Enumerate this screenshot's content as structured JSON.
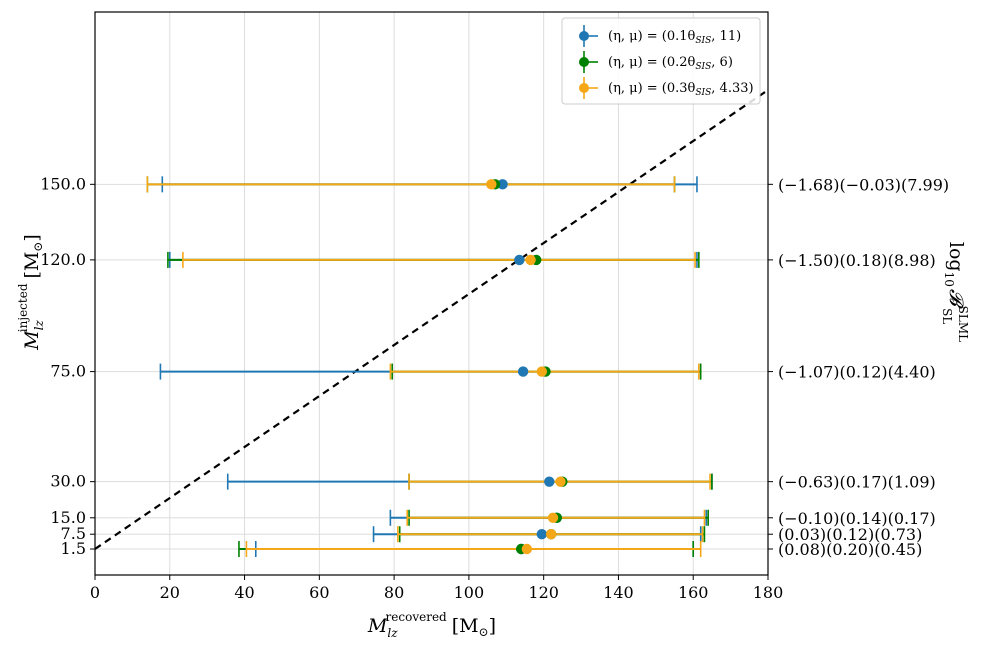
{
  "chart_data": {
    "type": "scatter",
    "title": "",
    "xlabel": {
      "main": "M",
      "sub": "lz",
      "sup": "recovered",
      "unit": "[M",
      "unit_sub": "⊙",
      "unit_end": "]"
    },
    "ylabel": {
      "main": "M",
      "sub": "lz",
      "sup": "injected",
      "unit": "[M",
      "unit_sub": "⊙",
      "unit_end": "]"
    },
    "right_ylabel": {
      "main": "log",
      "sub10": "10",
      "B": "𝓑",
      "sup": "SLML",
      "sub": "SL"
    },
    "xlim": [
      0,
      180
    ],
    "x_ticks": [
      "0",
      "20",
      "40",
      "60",
      "80",
      "100",
      "120",
      "140",
      "160",
      "180"
    ],
    "y_ticks": [
      "1.5",
      "7.5",
      "15.0",
      "30.0",
      "75.0",
      "120.0",
      "150.0"
    ],
    "rows": [
      {
        "injected": 1.5,
        "y_rank": -0.55,
        "right_label": "(0.08)(0.20)(0.45)"
      },
      {
        "injected": 7.5,
        "y_rank": -0.1,
        "right_label": "(0.03)(0.12)(0.73)"
      },
      {
        "injected": 15.0,
        "y_rank": 0.4,
        "right_label": "(−0.10)(0.14)(0.17)"
      },
      {
        "injected": 30.0,
        "y_rank": 1.5,
        "right_label": "(−0.63)(0.17)(1.09)"
      },
      {
        "injected": 75.0,
        "y_rank": 4.85,
        "right_label": "(−1.07)(0.12)(4.40)"
      },
      {
        "injected": 120.0,
        "y_rank": 8.25,
        "right_label": "(−1.50)(0.18)(8.98)"
      },
      {
        "injected": 150.0,
        "y_rank": 10.55,
        "right_label": "(−1.68)(−0.03)(7.99)"
      }
    ],
    "series": [
      {
        "name": "(η, μ) = (0.1θ_SIS, 11)",
        "legend_parts": [
          "(η, μ) = (0.1θ",
          "SIS",
          ", 11)"
        ],
        "color": "#1f77b4",
        "points": [
          {
            "injected": 1.5,
            "x": 114.0,
            "lo": 43.0,
            "hi": 160.0
          },
          {
            "injected": 7.5,
            "x": 119.5,
            "lo": 74.5,
            "hi": 162.0
          },
          {
            "injected": 15.0,
            "x": 123.5,
            "lo": 79.0,
            "hi": 163.5
          },
          {
            "injected": 30.0,
            "x": 121.5,
            "lo": 35.5,
            "hi": 165.0
          },
          {
            "injected": 75.0,
            "x": 114.5,
            "lo": 17.5,
            "hi": 162.0
          },
          {
            "injected": 120.0,
            "x": 113.5,
            "lo": 20.0,
            "hi": 161.0
          },
          {
            "injected": 150.0,
            "x": 109.0,
            "lo": 18.0,
            "hi": 161.0
          }
        ]
      },
      {
        "name": "(η, μ) = (0.2θ_SIS, 6)",
        "legend_parts": [
          "(η, μ) = (0.2θ",
          "SIS",
          ", 6)"
        ],
        "color": "#008000",
        "points": [
          {
            "injected": 1.5,
            "x": 114.0,
            "lo": 38.5,
            "hi": 160.0
          },
          {
            "injected": 7.5,
            "x": 122.0,
            "lo": 81.5,
            "hi": 163.0
          },
          {
            "injected": 15.0,
            "x": 123.5,
            "lo": 84.0,
            "hi": 164.0
          },
          {
            "injected": 30.0,
            "x": 125.0,
            "lo": 84.0,
            "hi": 165.0
          },
          {
            "injected": 75.0,
            "x": 120.5,
            "lo": 79.5,
            "hi": 162.0
          },
          {
            "injected": 120.0,
            "x": 118.0,
            "lo": 19.5,
            "hi": 161.5
          },
          {
            "injected": 150.0,
            "x": 107.0,
            "lo": 14.0,
            "hi": 155.0
          }
        ]
      },
      {
        "name": "(η, μ) = (0.3θ_SIS, 4.33)",
        "legend_parts": [
          "(η, μ) = (0.3θ",
          "SIS",
          ", 4.33)"
        ],
        "color": "#f5a718",
        "points": [
          {
            "injected": 1.5,
            "x": 115.5,
            "lo": 40.5,
            "hi": 162.0
          },
          {
            "injected": 7.5,
            "x": 122.0,
            "lo": 81.0,
            "hi": 162.5
          },
          {
            "injected": 15.0,
            "x": 122.5,
            "lo": 83.5,
            "hi": 163.0
          },
          {
            "injected": 30.0,
            "x": 124.5,
            "lo": 84.0,
            "hi": 164.5
          },
          {
            "injected": 75.0,
            "x": 119.5,
            "lo": 79.0,
            "hi": 161.5
          },
          {
            "injected": 120.0,
            "x": 116.5,
            "lo": 23.5,
            "hi": 160.5
          },
          {
            "injected": 150.0,
            "x": 106.0,
            "lo": 14.0,
            "hi": 155.0
          }
        ]
      }
    ],
    "reference_line": {
      "style": "dashed",
      "color": "#000000",
      "note": "y = x"
    },
    "legend_position": "top-right",
    "grid": true
  }
}
